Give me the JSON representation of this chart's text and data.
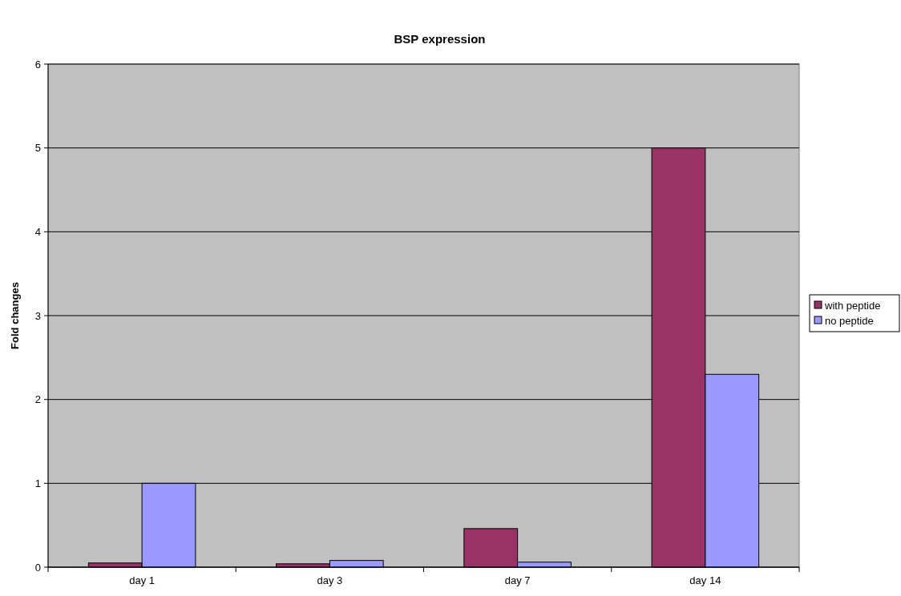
{
  "chart_data": {
    "type": "bar",
    "title": "BSP expression",
    "ylabel": "Fold changes",
    "categories": [
      "day 1",
      "day 3",
      "day 7",
      "day 14"
    ],
    "series": [
      {
        "name": "with peptide",
        "color": "#993366",
        "values": [
          0.05,
          0.04,
          0.46,
          5.0
        ]
      },
      {
        "name": "no peptide",
        "color": "#9999ff",
        "values": [
          1.0,
          0.08,
          0.06,
          2.3
        ]
      }
    ],
    "ylim": [
      0,
      6
    ],
    "yticks": [
      0,
      1,
      2,
      3,
      4,
      5,
      6
    ],
    "grid": "y",
    "legend": "right"
  }
}
